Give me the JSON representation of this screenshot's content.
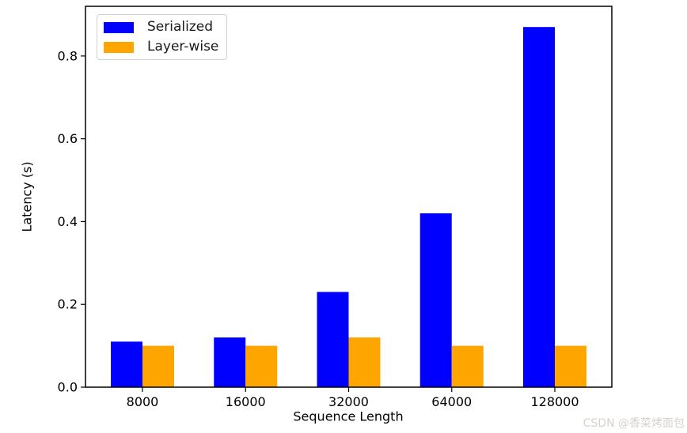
{
  "watermark": {
    "text": "CSDN @香菜烤面包",
    "color": "#d8d0cc"
  },
  "chart_data": {
    "type": "bar",
    "title": "",
    "xlabel": "Sequence Length",
    "ylabel": "Latency (s)",
    "categories": [
      "8000",
      "16000",
      "32000",
      "64000",
      "128000"
    ],
    "series": [
      {
        "name": "Serialized",
        "color": "#0000ff",
        "values": [
          0.11,
          0.12,
          0.23,
          0.42,
          0.87
        ]
      },
      {
        "name": "Layer-wise",
        "color": "#ffa500",
        "values": [
          0.1,
          0.1,
          0.12,
          0.1,
          0.1
        ]
      }
    ],
    "ylim": [
      0,
      0.92
    ],
    "y_ticks": [
      "0.0",
      "0.2",
      "0.4",
      "0.6",
      "0.8"
    ],
    "grid": false,
    "legend_position": "upper left",
    "axis_color": "#000000"
  }
}
